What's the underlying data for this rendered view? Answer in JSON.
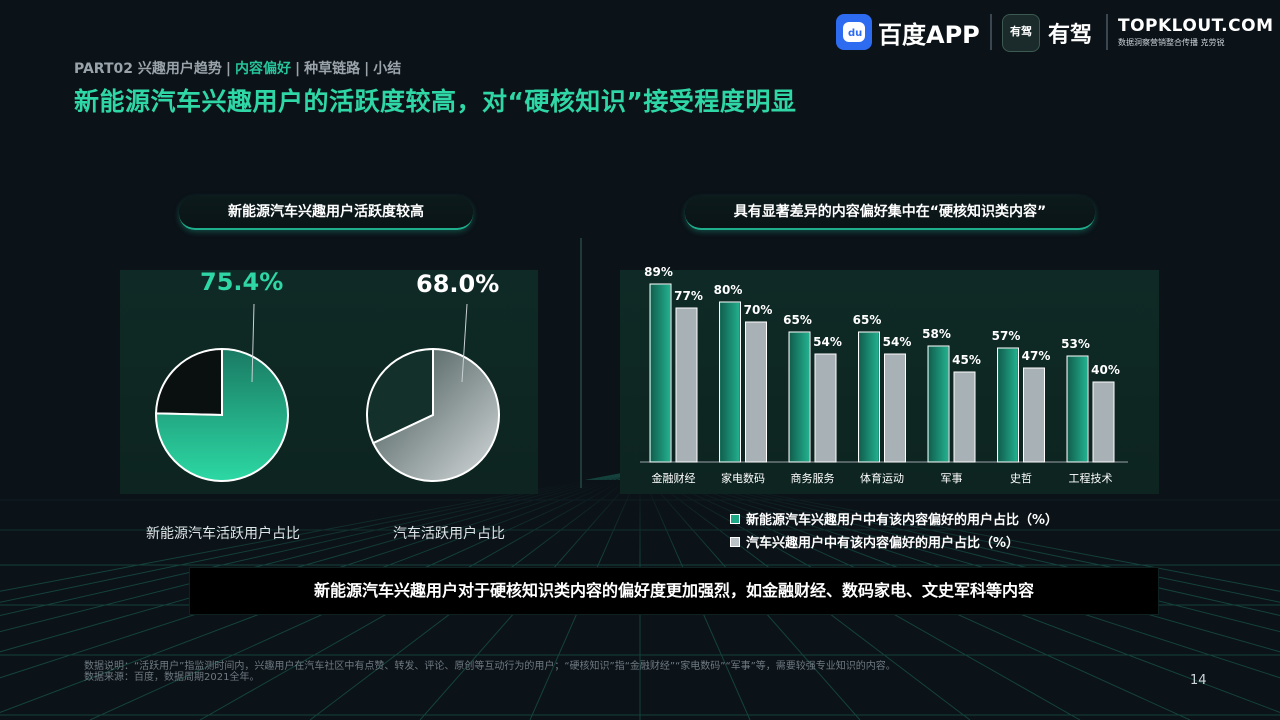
{
  "header": {
    "breadcrumb": {
      "items": [
        "PART02 兴趣用户趋势",
        "内容偏好",
        "种草链路",
        "小结"
      ],
      "separator": "|",
      "active_index": 1
    },
    "title": "新能源汽车兴趣用户的活跃度较高，对“硬核知识”接受程度明显",
    "logos": {
      "baidu": "百度APP",
      "baidu_badge": "du",
      "youjia_badge": "有驾",
      "youjia": "有驾",
      "topklout": "TOPKLOUT.COM",
      "topklout_sub": "数据洞察营销整合传播 克劳锐"
    }
  },
  "left_section": {
    "pill_title": "新能源汽车兴趣用户活跃度较高",
    "pies": [
      {
        "label": "新能源汽车活跃用户占比",
        "value_text": "75.4%",
        "value": 75.4
      },
      {
        "label": "汽车活跃用户占比",
        "value_text": "68.0%",
        "value": 68.0
      }
    ]
  },
  "right_section": {
    "pill_title": "具有显著差异的内容偏好集中在“硬核知识类内容”"
  },
  "chart_data": [
    {
      "type": "pie",
      "title": "新能源汽车兴趣用户活跃度较高",
      "charts": [
        {
          "label": "新能源汽车活跃用户占比",
          "value": 75.4
        },
        {
          "label": "汽车活跃用户占比",
          "value": 68.0
        }
      ]
    },
    {
      "type": "bar",
      "title": "具有显著差异的内容偏好集中在“硬核知识类内容”",
      "categories": [
        "金融财经",
        "家电数码",
        "商务服务",
        "体育运动",
        "军事",
        "史哲",
        "工程技术"
      ],
      "series": [
        {
          "name": "新能源汽车兴趣用户中有该内容偏好的用户占比（%）",
          "values": [
            89,
            80,
            65,
            65,
            58,
            57,
            53
          ],
          "labels": [
            "89%",
            "80%",
            "65%",
            "65%",
            "58%",
            "57%",
            "53%"
          ],
          "color": "#1fa886"
        },
        {
          "name": "汽车兴趣用户中有该内容偏好的用户占比（%）",
          "values": [
            77,
            70,
            54,
            54,
            45,
            47,
            40
          ],
          "labels": [
            "77%",
            "70%",
            "54%",
            "54%",
            "45%",
            "47%",
            "40%"
          ],
          "color": "#b9c2c6"
        }
      ],
      "ylim": [
        0,
        100
      ],
      "legend": "bottom"
    }
  ],
  "conclusion": "新能源汽车兴趣用户对于硬核知识类内容的偏好度更加强烈，如金融财经、数码家电、文史军科等内容",
  "footnote": {
    "line1": "数据说明：“活跃用户”指监测时间内，兴趣用户在汽车社区中有点赞、转发、评论、原创等互动行为的用户；“硬核知识”指“金融财经”“家电数码”“军事”等，需要较强专业知识的内容。",
    "line2": "数据来源：百度，数据周期2021全年。"
  },
  "page_number": "14",
  "colors": {
    "accent": "#2fd6a6",
    "nev_series": "#1fa886",
    "car_series": "#b9c2c6",
    "background": "#0b1218"
  }
}
